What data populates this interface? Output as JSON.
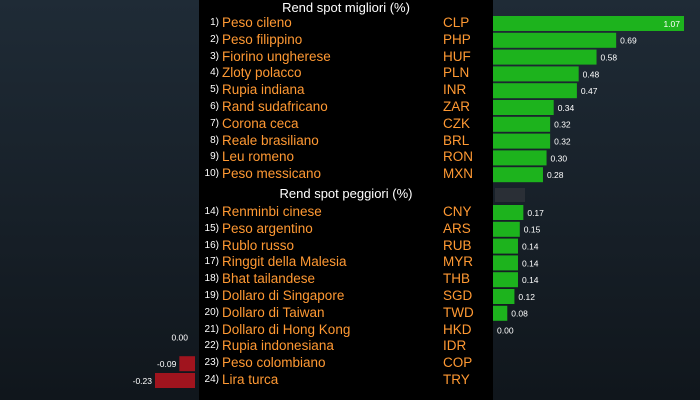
{
  "sections": [
    {
      "title": "Rend spot migliori (%)"
    },
    {
      "title": "Rend spot peggiori (%)"
    }
  ],
  "rows": [
    {
      "rank": "1)",
      "name": "Peso cileno",
      "code": "CLP"
    },
    {
      "rank": "2)",
      "name": "Peso filippino",
      "code": "PHP"
    },
    {
      "rank": "3)",
      "name": "Fiorino ungherese",
      "code": "HUF"
    },
    {
      "rank": "4)",
      "name": "Zloty polacco",
      "code": "PLN"
    },
    {
      "rank": "5)",
      "name": "Rupia indiana",
      "code": "INR"
    },
    {
      "rank": "6)",
      "name": "Rand sudafricano",
      "code": "ZAR"
    },
    {
      "rank": "7)",
      "name": "Corona ceca",
      "code": "CZK"
    },
    {
      "rank": "8)",
      "name": "Reale brasiliano",
      "code": "BRL"
    },
    {
      "rank": "9)",
      "name": "Leu romeno",
      "code": "RON"
    },
    {
      "rank": "10)",
      "name": "Peso messicano",
      "code": "MXN"
    },
    {
      "rank": "14)",
      "name": "Renminbi cinese",
      "code": "CNY"
    },
    {
      "rank": "15)",
      "name": "Peso argentino",
      "code": "ARS"
    },
    {
      "rank": "16)",
      "name": "Rublo russo",
      "code": "RUB"
    },
    {
      "rank": "17)",
      "name": "Ringgit della Malesia",
      "code": "MYR"
    },
    {
      "rank": "18)",
      "name": "Bhat tailandese",
      "code": "THB"
    },
    {
      "rank": "19)",
      "name": "Dollaro di Singapore",
      "code": "SGD"
    },
    {
      "rank": "20)",
      "name": "Dollaro di Taiwan",
      "code": "TWD"
    },
    {
      "rank": "21)",
      "name": "Dollaro di Hong Kong",
      "code": "HKD"
    },
    {
      "rank": "22)",
      "name": "Rupia indonesiana",
      "code": "IDR"
    },
    {
      "rank": "23)",
      "name": "Peso colombiano",
      "code": "COP"
    },
    {
      "rank": "24)",
      "name": "Lira turca",
      "code": "TRY"
    }
  ],
  "chart_data": {
    "type": "bar",
    "orientation": "horizontal",
    "title": "",
    "categories": [
      "CLP",
      "PHP",
      "HUF",
      "PLN",
      "INR",
      "ZAR",
      "CZK",
      "BRL",
      "RON",
      "MXN",
      "CNY",
      "ARS",
      "RUB",
      "MYR",
      "THB",
      "SGD",
      "TWD",
      "HKD",
      "IDR",
      "COP",
      "TRY"
    ],
    "values": [
      1.07,
      0.69,
      0.58,
      0.48,
      0.47,
      0.34,
      0.32,
      0.32,
      0.3,
      0.28,
      0.17,
      0.15,
      0.14,
      0.14,
      0.14,
      0.12,
      0.08,
      0.0,
      0.0,
      -0.09,
      -0.23
    ],
    "labels": [
      "1.07",
      "0.69",
      "0.58",
      "0.48",
      "0.47",
      "0.34",
      "0.32",
      "0.32",
      "0.30",
      "0.28",
      "0.17",
      "0.15",
      "0.14",
      "0.14",
      "0.14",
      "0.12",
      "0.08",
      "0.00",
      "0.00",
      "-0.09",
      "-0.23"
    ],
    "groups": [
      {
        "title": "Rend spot migliori (%)",
        "count": 10
      },
      {
        "title": "Rend spot peggiori (%)",
        "count": 11
      }
    ],
    "colors": {
      "positive": "#1db31d",
      "negative": "#a0141e",
      "label": "#ffffff"
    },
    "grid": false,
    "legend": "none"
  }
}
